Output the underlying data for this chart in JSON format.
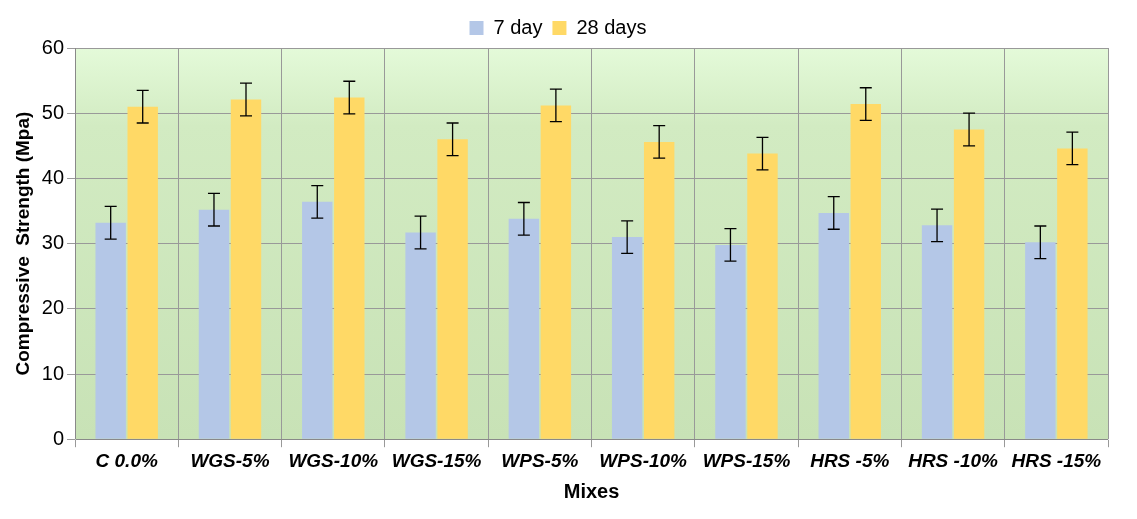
{
  "chart_data": {
    "type": "bar",
    "xlabel": "Mixes",
    "ylabel": "Compressive  Strength (Mpa)",
    "categories": [
      "C 0.0%",
      "WGS-5%",
      "WGS-10%",
      "WGS-15%",
      "WPS-5%",
      "WPS-10%",
      "WPS-15%",
      "HRS -5%",
      "HRS -10%",
      "HRS -15%"
    ],
    "series": [
      {
        "name": "7 day",
        "color": "#b4c7e7",
        "values": [
          33.2,
          35.2,
          36.4,
          31.7,
          33.8,
          31.0,
          29.8,
          34.7,
          32.8,
          30.2
        ],
        "errors": [
          2.5,
          2.5,
          2.5,
          2.5,
          2.5,
          2.5,
          2.5,
          2.5,
          2.5,
          2.5
        ]
      },
      {
        "name": "28 days",
        "color": "#ffd966",
        "values": [
          51.0,
          52.1,
          52.4,
          46.0,
          51.2,
          45.6,
          43.8,
          51.4,
          47.5,
          44.6
        ],
        "errors": [
          2.5,
          2.5,
          2.5,
          2.5,
          2.5,
          2.5,
          2.5,
          2.5,
          2.5,
          2.5
        ]
      }
    ],
    "ylim": [
      0,
      60
    ],
    "yticks": [
      0,
      10,
      20,
      30,
      40,
      50,
      60
    ],
    "grid": true,
    "legend": "top"
  }
}
